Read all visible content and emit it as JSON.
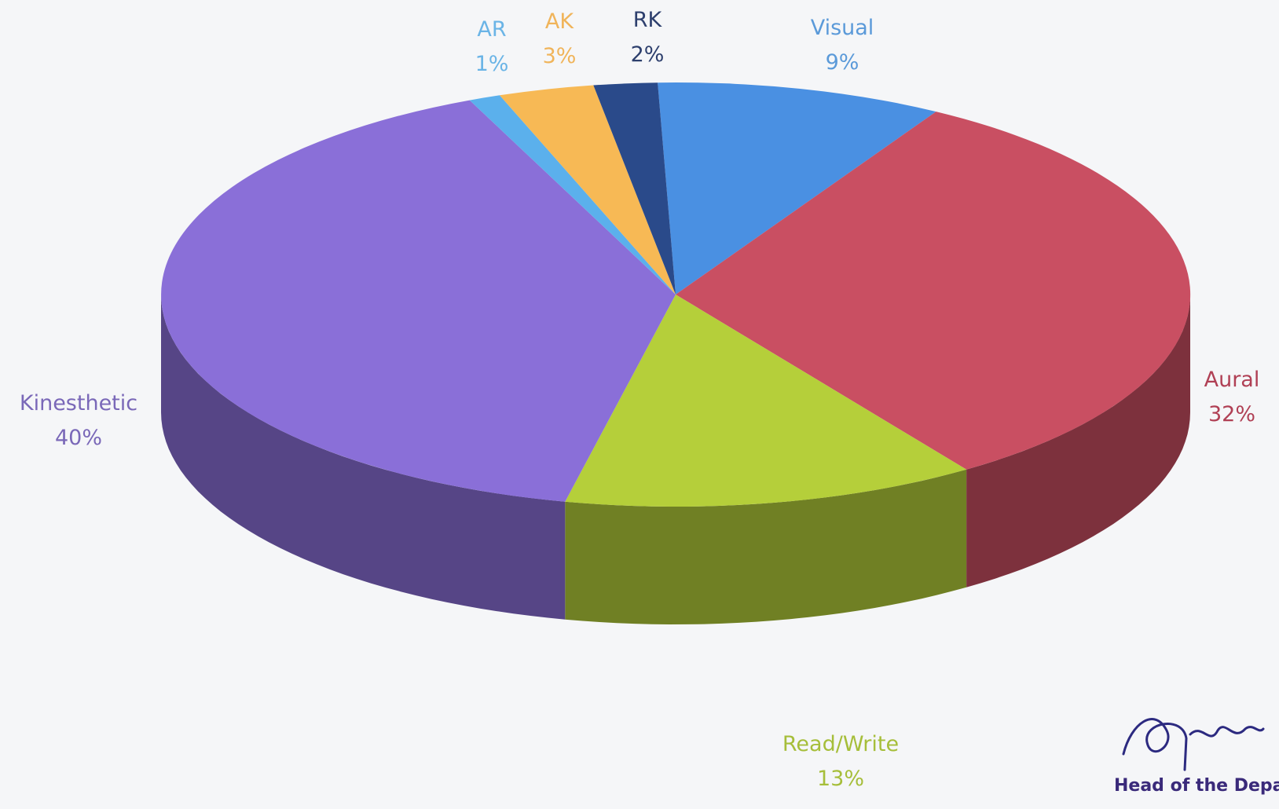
{
  "chart_data": {
    "type": "pie",
    "title": "",
    "slices": [
      {
        "label": "Visual",
        "value": 9,
        "value_label": "9%",
        "color": "#4a90e2",
        "label_color": "#5b9ad9"
      },
      {
        "label": "Aural",
        "value": 32,
        "value_label": "32%",
        "color": "#c94f62",
        "label_color": "#b04055"
      },
      {
        "label": "Read/Write",
        "value": 13,
        "value_label": "13%",
        "color": "#b5cf3a",
        "label_color": "#a6be3a"
      },
      {
        "label": "Kinesthetic",
        "value": 40,
        "value_label": "40%",
        "color": "#8a6fd8",
        "label_color": "#7a68b8"
      },
      {
        "label": "AR",
        "value": 1,
        "value_label": "1%",
        "color": "#5bb0ec",
        "label_color": "#6ab4e6"
      },
      {
        "label": "AK",
        "value": 3,
        "value_label": "3%",
        "color": "#f7b955",
        "label_color": "#f0b45a"
      },
      {
        "label": "RK",
        "value": 2,
        "value_label": "2%",
        "color": "#2a4a8a",
        "label_color": "#2d3f6d"
      }
    ]
  },
  "footer": {
    "signature_caption": "Head of the Depa"
  }
}
